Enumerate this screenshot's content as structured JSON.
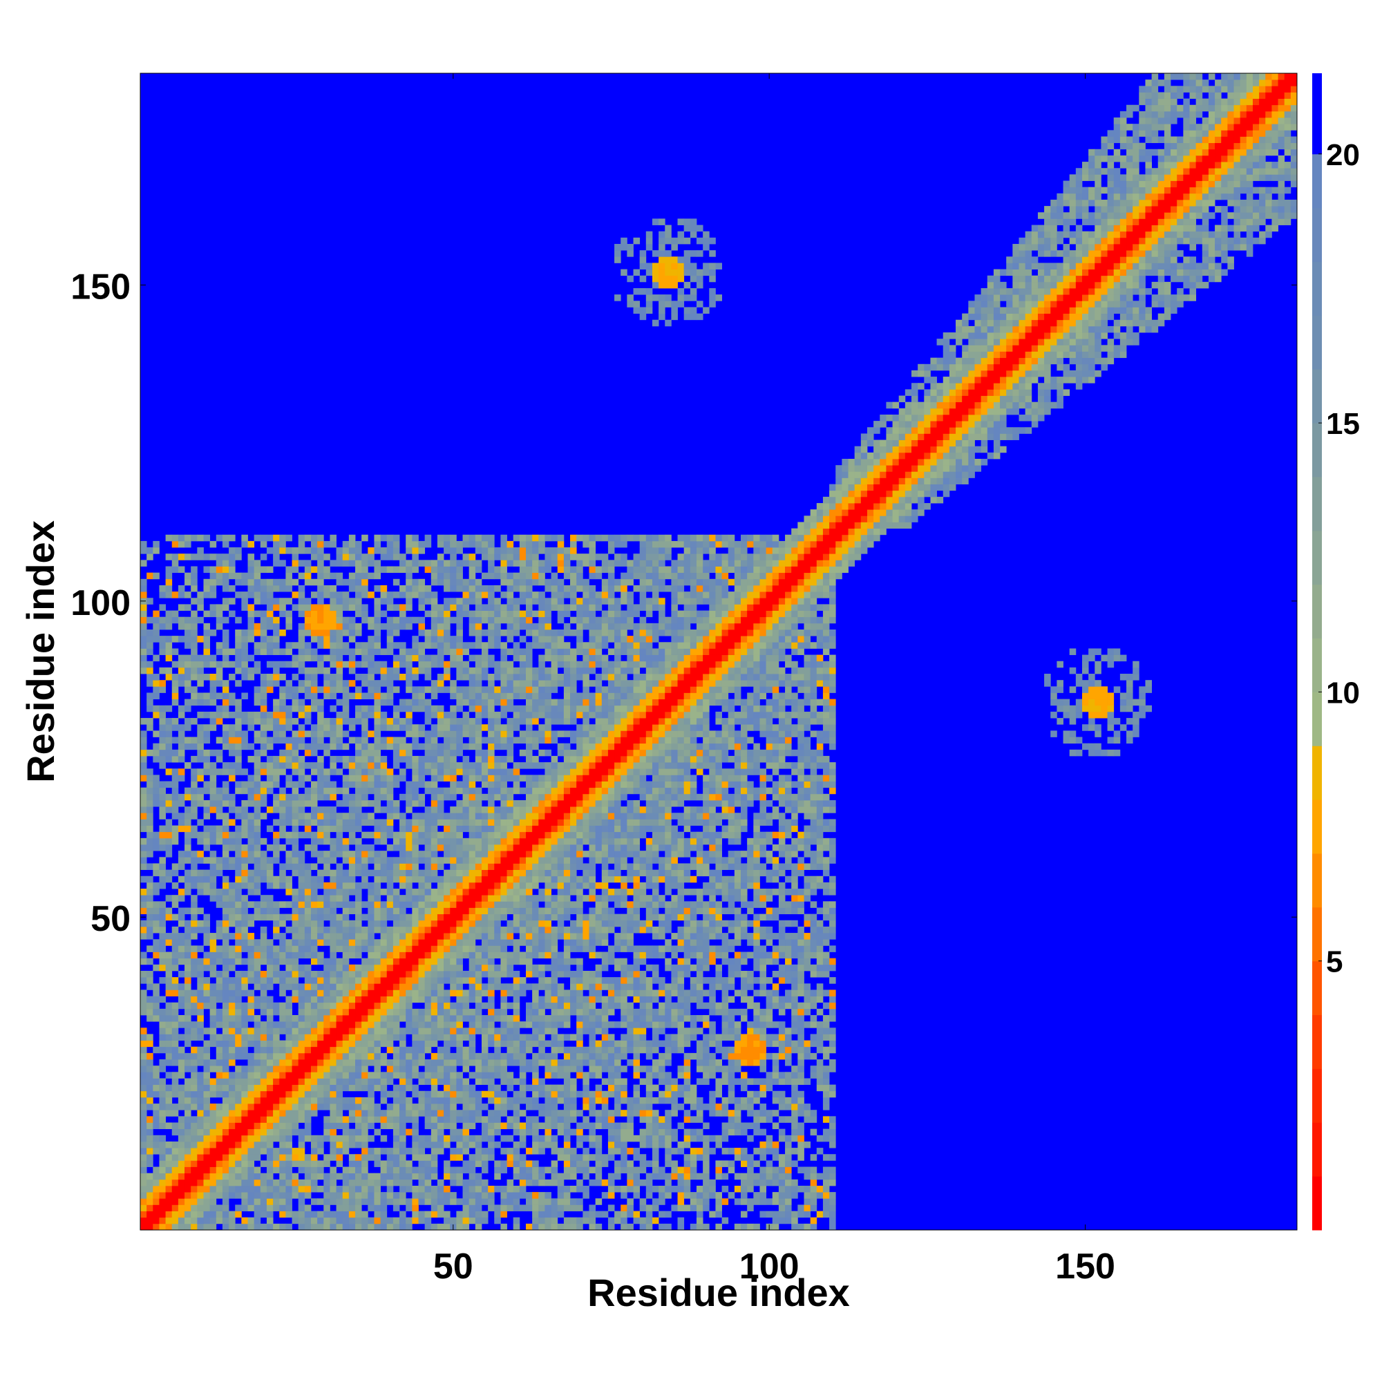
{
  "chart_data": {
    "type": "heatmap",
    "title": "",
    "xlabel": "Residue index",
    "ylabel": "Residue index",
    "n_residues": 183,
    "xlim": [
      1,
      183
    ],
    "ylim": [
      1,
      183
    ],
    "x_ticks": [
      50,
      100,
      150
    ],
    "x_tick_labels": [
      "50",
      "100",
      "150"
    ],
    "y_ticks": [
      50,
      100,
      150
    ],
    "y_tick_labels": [
      "50",
      "100",
      "150"
    ],
    "colorbar": {
      "range": [
        0,
        21.5
      ],
      "ticks": [
        5,
        10,
        15,
        20
      ],
      "tick_labels": [
        "5",
        "10",
        "15",
        "20"
      ],
      "colors": [
        {
          "from": 0,
          "to": 1,
          "color": "#ff0000"
        },
        {
          "from": 1,
          "to": 2,
          "color": "#ff1800"
        },
        {
          "from": 2,
          "to": 3,
          "color": "#ff2a00"
        },
        {
          "from": 3,
          "to": 4,
          "color": "#ff3c00"
        },
        {
          "from": 4,
          "to": 5,
          "color": "#ff5500"
        },
        {
          "from": 5,
          "to": 6,
          "color": "#ff7300"
        },
        {
          "from": 6,
          "to": 7,
          "color": "#ff8c00"
        },
        {
          "from": 7,
          "to": 8,
          "color": "#ffa500"
        },
        {
          "from": 8,
          "to": 9,
          "color": "#f0b400"
        },
        {
          "from": 9,
          "to": 10,
          "color": "#9fb885"
        },
        {
          "from": 10,
          "to": 11,
          "color": "#9ab38a"
        },
        {
          "from": 11,
          "to": 12,
          "color": "#93ab8e"
        },
        {
          "from": 12,
          "to": 13,
          "color": "#8aa595"
        },
        {
          "from": 13,
          "to": 14,
          "color": "#839f9a"
        },
        {
          "from": 14,
          "to": 15,
          "color": "#7c99a2"
        },
        {
          "from": 15,
          "to": 16,
          "color": "#7594aa"
        },
        {
          "from": 16,
          "to": 17,
          "color": "#6e8eb2"
        },
        {
          "from": 17,
          "to": 18,
          "color": "#6b8cb6"
        },
        {
          "from": 18,
          "to": 19,
          "color": "#6888bb"
        },
        {
          "from": 19,
          "to": 20,
          "color": "#6586c0"
        },
        {
          "from": 20,
          "to": 21.5,
          "color": "#0000ff"
        }
      ]
    },
    "background_value": 21,
    "background_color": "#0000ff",
    "features": [
      {
        "kind": "diagonal_band",
        "from": 1,
        "to": 183,
        "description": "contacts along the diagonal, distance ~0 on the diagonal rising with offset"
      },
      {
        "kind": "domain_block",
        "x": [
          1,
          110
        ],
        "y": [
          1,
          110
        ],
        "typical_value": 16
      },
      {
        "kind": "domain_block",
        "x": [
          110,
          183
        ],
        "y": [
          110,
          183
        ],
        "typical_value": 17
      },
      {
        "kind": "contact_patch",
        "x": 29,
        "y": 97,
        "value": 6
      },
      {
        "kind": "contact_patch",
        "x": 97,
        "y": 29,
        "value": 6
      },
      {
        "kind": "contact_patch",
        "x": 152,
        "y": 84,
        "value": 7
      },
      {
        "kind": "contact_patch",
        "x": 84,
        "y": 152,
        "value": 7
      }
    ]
  }
}
